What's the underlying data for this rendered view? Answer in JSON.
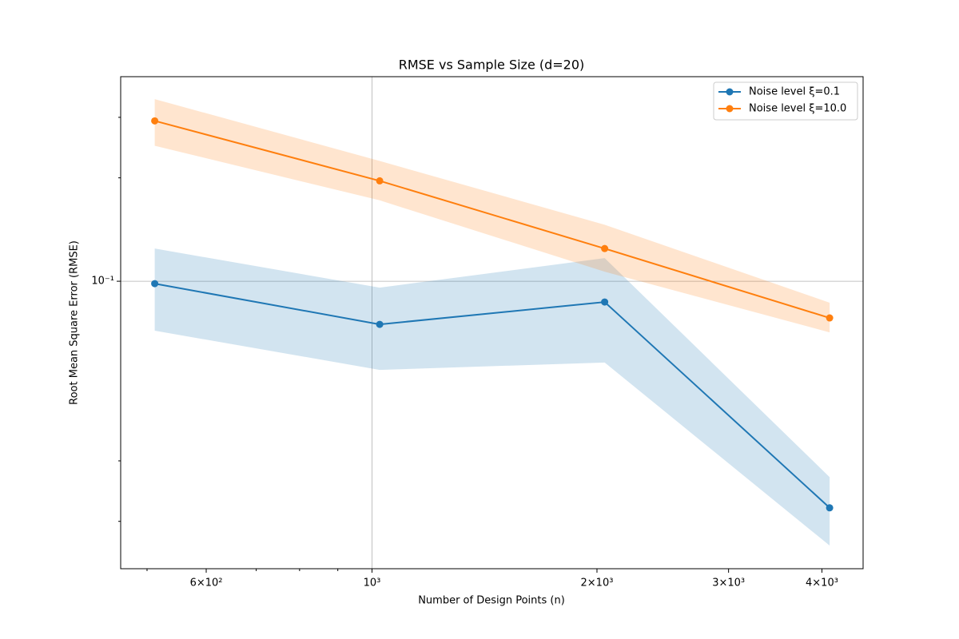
{
  "chart_data": {
    "type": "line",
    "title": "RMSE vs Sample Size (d=20)",
    "xlabel": "Number of Design Points (n)",
    "ylabel": "Root Mean Square Error (RMSE)",
    "x": [
      512,
      1024,
      2048,
      4096
    ],
    "series": [
      {
        "name": "Noise level ξ=0.1",
        "color": "#1f77b4",
        "values": [
          0.0984,
          0.0749,
          0.087,
          0.0219
        ],
        "upper": [
          0.1245,
          0.0958,
          0.1168,
          0.0269
        ],
        "lower": [
          0.0718,
          0.0552,
          0.058,
          0.017
        ]
      },
      {
        "name": "Noise level ξ=10.0",
        "color": "#ff7f0e",
        "values": [
          0.293,
          0.196,
          0.1245,
          0.0782
        ],
        "upper": [
          0.339,
          0.224,
          0.146,
          0.0866
        ],
        "lower": [
          0.248,
          0.172,
          0.1066,
          0.071
        ]
      }
    ],
    "xscale": "log",
    "yscale": "log",
    "xlim": [
      461,
      4541
    ],
    "ylim": [
      0.01456,
      0.394
    ],
    "xticks": [
      {
        "value": 600,
        "label": "6×10²"
      },
      {
        "value": 1000,
        "label": "10³"
      },
      {
        "value": 2000,
        "label": "2×10³"
      },
      {
        "value": 3000,
        "label": "3×10³"
      },
      {
        "value": 4000,
        "label": "4×10³"
      }
    ],
    "xticks_minor": [
      500,
      700,
      800,
      900
    ],
    "yticks": [
      {
        "value": 0.1,
        "label": "10⁻¹"
      }
    ],
    "yticks_minor": [
      0.02,
      0.03,
      0.2,
      0.3
    ],
    "grid_major": [
      1000,
      0.1
    ],
    "grid": true,
    "legend": "upper right"
  }
}
